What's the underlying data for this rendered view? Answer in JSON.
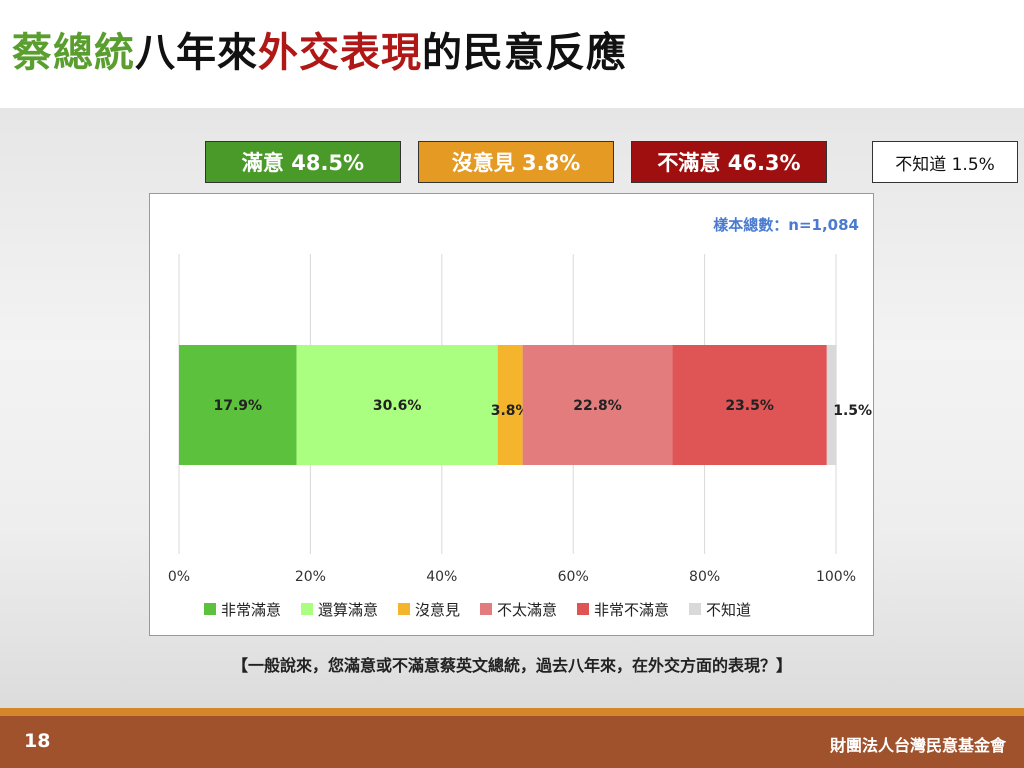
{
  "title": {
    "part1": "蔡總統",
    "part2": "八年來",
    "part3": "外交表現",
    "part4": "的民意反應",
    "color1": "#5a9e2f",
    "color2": "#111111",
    "color3": "#b01818",
    "color4": "#111111"
  },
  "summary": [
    {
      "label": "滿意 48.5%",
      "color": "#4a9a2a",
      "text_color": "#ffffff"
    },
    {
      "label": "沒意見 3.8%",
      "color": "#e59a23",
      "text_color": "#ffffff"
    },
    {
      "label": "不滿意 46.3%",
      "color": "#a00f0f",
      "text_color": "#ffffff"
    },
    {
      "label": "不知道 1.5%",
      "color": "#ffffff",
      "text_color": "#111111"
    }
  ],
  "sample_note": "樣本總數：n=1,084",
  "chart_data": {
    "type": "bar",
    "orientation": "horizontal",
    "stacked": true,
    "categories": [
      ""
    ],
    "series": [
      {
        "name": "非常滿意",
        "values": [
          17.9
        ],
        "label": "17.9%",
        "color": "#5cc13c"
      },
      {
        "name": "還算滿意",
        "values": [
          30.6
        ],
        "label": "30.6%",
        "color": "#aaff80"
      },
      {
        "name": "沒意見",
        "values": [
          3.8
        ],
        "label": "3.8%",
        "color": "#f4b52c"
      },
      {
        "name": "不太滿意",
        "values": [
          22.8
        ],
        "label": "22.8%",
        "color": "#e37d7d"
      },
      {
        "name": "非常不滿意",
        "values": [
          23.5
        ],
        "label": "23.5%",
        "color": "#df5454"
      },
      {
        "name": "不知道",
        "values": [
          1.5
        ],
        "label": "1.5%",
        "color": "#d9d9d9"
      }
    ],
    "xlim": [
      0,
      100
    ],
    "xticks": [
      "0%",
      "20%",
      "40%",
      "60%",
      "80%",
      "100%"
    ],
    "grid": "vertical",
    "legend_position": "bottom"
  },
  "question": "【一般說來，您滿意或不滿意蔡英文總統，過去八年來，在外交方面的表現？】",
  "footer": {
    "page_number": "18",
    "organization": "財團法人台灣民意基金會"
  }
}
